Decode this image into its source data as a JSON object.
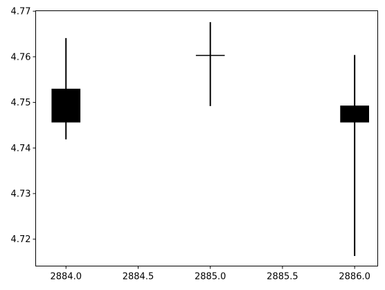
{
  "chart_data": {
    "type": "candlestick",
    "title": "",
    "xlabel": "",
    "ylabel": "",
    "grid": false,
    "xlim": [
      2883.79,
      2886.16
    ],
    "ylim": [
      4.7141,
      4.7701
    ],
    "xticks": [
      2884.0,
      2884.5,
      2885.0,
      2885.5,
      2886.0
    ],
    "xtick_labels": [
      "2884.0",
      "2884.5",
      "2885.0",
      "2885.5",
      "2886.0"
    ],
    "yticks": [
      4.72,
      4.73,
      4.74,
      4.75,
      4.76,
      4.77
    ],
    "ytick_labels": [
      "4.72",
      "4.73",
      "4.74",
      "4.75",
      "4.76",
      "4.77"
    ],
    "candle_width": 0.2,
    "color": "#000000",
    "candles": [
      {
        "x": 2884.0,
        "open": 4.7456,
        "high": 4.7641,
        "low": 4.7419,
        "close": 4.753
      },
      {
        "x": 2885.0,
        "open": 4.7603,
        "high": 4.7676,
        "low": 4.7492,
        "close": 4.7603
      },
      {
        "x": 2886.0,
        "open": 4.7493,
        "high": 4.7604,
        "low": 4.7163,
        "close": 4.7456
      }
    ]
  }
}
